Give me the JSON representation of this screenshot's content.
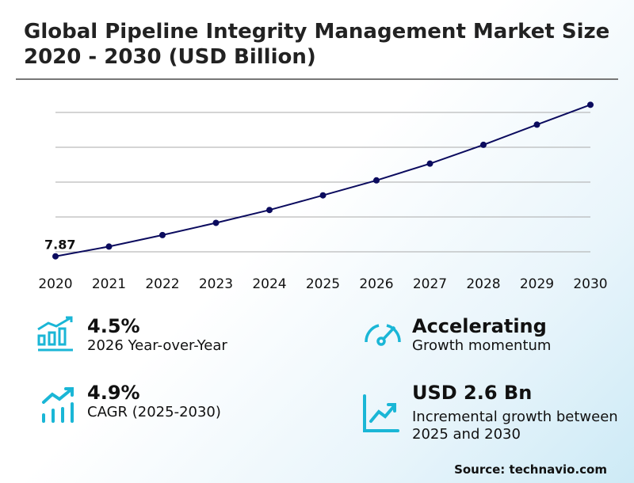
{
  "title": "Global Pipeline Integrity Management Market Size 2020 - 2030 (USD Billion)",
  "chart_data": {
    "type": "line",
    "title": "Global Pipeline Integrity Management Market Size 2020 - 2030 (USD Billion)",
    "categories": [
      "2020",
      "2021",
      "2022",
      "2023",
      "2024",
      "2025",
      "2026",
      "2027",
      "2028",
      "2029",
      "2030"
    ],
    "series": [
      {
        "values": [
          7.87,
          8.15,
          8.48,
          8.83,
          9.2,
          9.62,
          10.05,
          10.53,
          11.07,
          11.65,
          12.22
        ]
      }
    ],
    "data_labels": [
      {
        "category": "2020",
        "text": "7.87"
      }
    ],
    "grid": true,
    "gridlines": [
      8,
      9,
      10,
      11,
      12
    ],
    "line_color": "#0b0b5e"
  },
  "stats": [
    {
      "value": "4.5%",
      "desc": "2026 Year-over-Year",
      "icon": "bar-chart-growth-icon"
    },
    {
      "value": "Accelerating",
      "desc": "Growth momentum",
      "icon": "speedometer-icon"
    },
    {
      "value": "4.9%",
      "desc": "CAGR (2025-2030)",
      "icon": "trend-up-bars-icon"
    },
    {
      "value": "USD 2.6 Bn",
      "desc": "Incremental growth between 2025 and 2030",
      "icon": "line-chart-up-icon"
    }
  ],
  "accent_color": "#1ab6d6",
  "source": "Source: technavio.com"
}
